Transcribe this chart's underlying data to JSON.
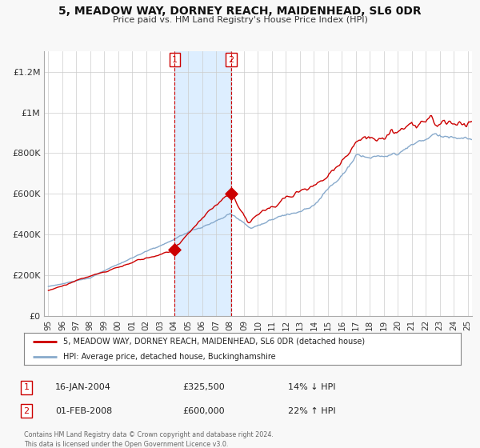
{
  "title": "5, MEADOW WAY, DORNEY REACH, MAIDENHEAD, SL6 0DR",
  "subtitle": "Price paid vs. HM Land Registry's House Price Index (HPI)",
  "legend_label_red": "5, MEADOW WAY, DORNEY REACH, MAIDENHEAD, SL6 0DR (detached house)",
  "legend_label_blue": "HPI: Average price, detached house, Buckinghamshire",
  "annotation1_label": "1",
  "annotation1_date": "16-JAN-2004",
  "annotation1_price": "£325,500",
  "annotation1_hpi": "14% ↓ HPI",
  "annotation2_label": "2",
  "annotation2_date": "01-FEB-2008",
  "annotation2_price": "£600,000",
  "annotation2_hpi": "22% ↑ HPI",
  "footnote": "Contains HM Land Registry data © Crown copyright and database right 2024.\nThis data is licensed under the Open Government Licence v3.0.",
  "shade_start": 2004.04,
  "shade_end": 2008.08,
  "point1_x": 2004.04,
  "point1_y": 325500,
  "point2_x": 2008.08,
  "point2_y": 600000,
  "vline1_x": 2004.04,
  "vline2_x": 2008.08,
  "ylim": [
    0,
    1300000
  ],
  "xlim": [
    1994.7,
    2025.3
  ],
  "red_color": "#cc0000",
  "blue_color": "#88aacc",
  "shade_color": "#ddeeff",
  "background_color": "#f8f8f8",
  "plot_bg_color": "#ffffff",
  "grid_color": "#cccccc"
}
